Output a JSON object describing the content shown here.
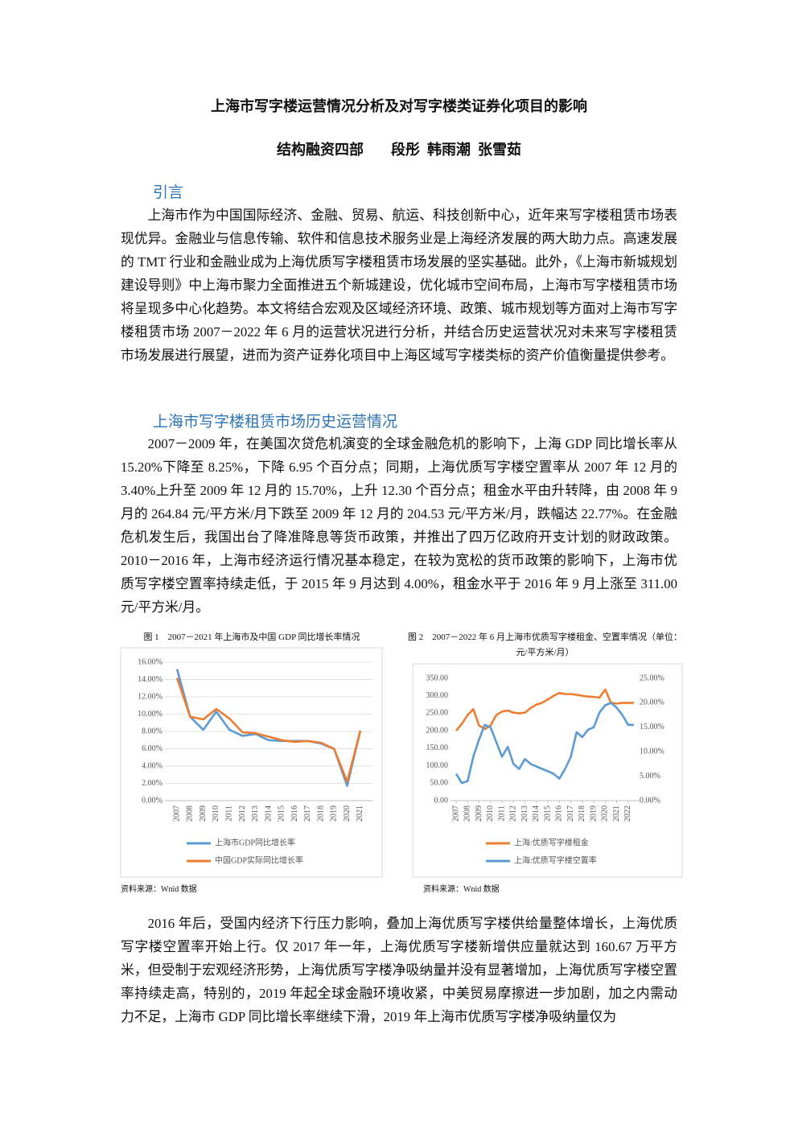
{
  "header": {
    "title": "上海市写字楼运营情况分析及对写字楼类证券化项目的影响",
    "department": "结构融资四部",
    "authors": "段彤  韩雨潮  张雪茹"
  },
  "sections": [
    {
      "heading": "引言",
      "paragraphs": [
        "上海市作为中国国际经济、金融、贸易、航运、科技创新中心，近年来写字楼租赁市场表现优异。金融业与信息传输、软件和信息技术服务业是上海经济发展的两大助力点。高速发展的 TMT 行业和金融业成为上海优质写字楼租赁市场发展的坚实基础。此外，《上海市新城规划建设导则》中上海市聚力全面推进五个新城建设，优化城市空间布局，上海市写字楼租赁市场将呈现多中心化趋势。本文将结合宏观及区域经济环境、政策、城市规划等方面对上海市写字楼租赁市场 2007－2022 年 6 月的运营状况进行分析，并结合历史运营状况对未来写字楼租赁市场发展进行展望，进而为资产证券化项目中上海区域写字楼类标的资产价值衡量提供参考。"
      ]
    },
    {
      "heading": "上海市写字楼租赁市场历史运营情况",
      "paragraphs": [
        "2007－2009 年，在美国次贷危机演变的全球金融危机的影响下，上海 GDP 同比增长率从 15.20%下降至 8.25%，下降 6.95 个百分点；同期，上海优质写字楼空置率从 2007 年 12 月的 3.40%上升至 2009 年 12 月的 15.70%，上升 12.30 个百分点；租金水平由升转降，由 2008 年 9 月的 264.84 元/平方米/月下跌至 2009 年 12 月的 204.53 元/平方米/月，跌幅达 22.77%。在金融危机发生后，我国出台了降准降息等货币政策，并推出了四万亿政府开支计划的财政政策。2010－2016 年，上海市经济运行情况基本稳定，在较为宽松的货币政策的影响下，上海市优质写字楼空置率持续走低，于 2015 年 9 月达到 4.00%，租金水平于 2016 年 9 月上涨至 311.00 元/平方米/月。",
        "2016 年后，受国内经济下行压力影响，叠加上海优质写字楼供给量整体增长，上海优质写字楼空置率开始上行。仅 2017 年一年，上海优质写字楼新增供应量就达到 160.67 万平方米，但受制于宏观经济形势，上海优质写字楼净吸纳量并没有显著增加，上海优质写字楼空置率持续走高，特别的，2019 年起全球金融环境收紧，中美贸易摩擦进一步加剧，加之内需动力不足，上海市 GDP 同比增长率继续下滑，2019 年上海市优质写字楼净吸纳量仅为"
      ]
    }
  ],
  "chart_data": [
    {
      "type": "line",
      "title": "图 1　2007－2021 年上海市及中国 GDP 同比增长率情况",
      "source": "资料来源：Wnid 数据",
      "categories": [
        "2007",
        "2008",
        "2009",
        "2010",
        "2011",
        "2012",
        "2013",
        "2014",
        "2015",
        "2016",
        "2017",
        "2018",
        "2019",
        "2020",
        "2021"
      ],
      "series": [
        {
          "name": "上海市GDP同比增长率",
          "color": "#5b9bd5",
          "values": [
            15.2,
            9.7,
            8.2,
            10.3,
            8.2,
            7.5,
            7.7,
            7.0,
            6.9,
            6.9,
            6.9,
            6.6,
            6.0,
            1.7,
            8.1
          ]
        },
        {
          "name": "中国GDP实际同比增长率",
          "color": "#ed7d31",
          "values": [
            14.2,
            9.7,
            9.4,
            10.6,
            9.5,
            7.9,
            7.8,
            7.4,
            7.0,
            6.8,
            6.9,
            6.7,
            6.0,
            2.2,
            8.1
          ]
        }
      ],
      "ylim": [
        0,
        16
      ],
      "yticks": [
        {
          "value": 0,
          "label": "0.00%"
        },
        {
          "value": 2,
          "label": "2.00%"
        },
        {
          "value": 4,
          "label": "4.00%"
        },
        {
          "value": 6,
          "label": "6.00%"
        },
        {
          "value": 8,
          "label": "8.00%"
        },
        {
          "value": 10,
          "label": "10.00%"
        },
        {
          "value": 12,
          "label": "12.00%"
        },
        {
          "value": 14,
          "label": "14.00%"
        },
        {
          "value": 16,
          "label": "16.00%"
        }
      ],
      "grid": true
    },
    {
      "type": "line",
      "title": "图 2　2007－2022 年 6 月上海市优质写字楼租金、空置率情况（单位：元/平方米/月）",
      "source": "资料来源：Wnid 数据",
      "x": [
        2007,
        2007.5,
        2008,
        2008.5,
        2009,
        2009.5,
        2010,
        2010.5,
        2011,
        2011.5,
        2012,
        2012.5,
        2013,
        2013.5,
        2014,
        2014.5,
        2015,
        2015.5,
        2016,
        2016.5,
        2017,
        2017.5,
        2018,
        2018.5,
        2019,
        2019.5,
        2020,
        2020.5,
        2021,
        2021.5,
        2022,
        2022.5
      ],
      "xlim": [
        2007,
        2022.5
      ],
      "xticks": [
        2007,
        2008,
        2009,
        2010,
        2011,
        2012,
        2013,
        2014,
        2015,
        2016,
        2017,
        2018,
        2019,
        2020,
        2021,
        2022
      ],
      "series": [
        {
          "name": "上海:优质写字楼租金",
          "color": "#ed7d31",
          "values": [
            200,
            220,
            245,
            262,
            215,
            205,
            215,
            245,
            255,
            258,
            252,
            250,
            252,
            265,
            275,
            280,
            290,
            300,
            308,
            305,
            305,
            303,
            300,
            298,
            297,
            295,
            318,
            280,
            278,
            280,
            280,
            280
          ]
        },
        {
          "name": "上海:优质写字楼空置率",
          "color": "#5b9bd5",
          "axis": "y2",
          "values": [
            5.5,
            3.6,
            4.0,
            9.0,
            12.5,
            15.5,
            15.0,
            12.0,
            9.0,
            11.0,
            7.5,
            6.5,
            8.5,
            7.5,
            7.0,
            6.5,
            6.0,
            5.5,
            4.5,
            6.5,
            9.0,
            14.0,
            13.0,
            14.5,
            15.0,
            18.0,
            19.5,
            20.0,
            19.0,
            17.5,
            15.5,
            15.5
          ]
        }
      ],
      "ylim": [
        0,
        350
      ],
      "yticks": [
        {
          "value": 0,
          "label": "0.00"
        },
        {
          "value": 50,
          "label": "50.00"
        },
        {
          "value": 100,
          "label": "100.00"
        },
        {
          "value": 150,
          "label": "150.00"
        },
        {
          "value": 200,
          "label": "200.00"
        },
        {
          "value": 250,
          "label": "250.00"
        },
        {
          "value": 300,
          "label": "300.00"
        },
        {
          "value": 350,
          "label": "350.00"
        }
      ],
      "y2lim": [
        0,
        25
      ],
      "y2ticks": [
        {
          "value": 0,
          "label": "0.00%"
        },
        {
          "value": 5,
          "label": "5.00%"
        },
        {
          "value": 10,
          "label": "10.00%"
        },
        {
          "value": 15,
          "label": "15.00%"
        },
        {
          "value": 20,
          "label": "20.00%"
        },
        {
          "value": 25,
          "label": "25.00%"
        }
      ],
      "grid": false
    }
  ]
}
